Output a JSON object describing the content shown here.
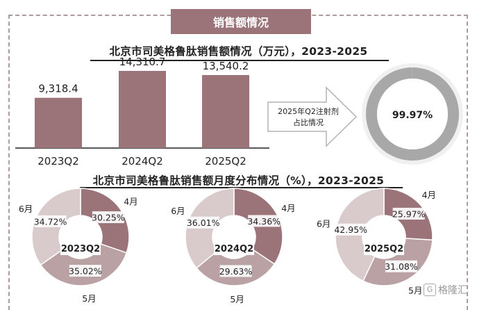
{
  "header": {
    "badge_label": "销售额情况"
  },
  "chart_data": [
    {
      "type": "bar",
      "title": "北京市司美格鲁肽销售额情况（万元），2023-2025",
      "categories": [
        "2023Q2",
        "2024Q2",
        "2025Q2"
      ],
      "values": [
        9318.4,
        14310.7,
        13540.2
      ],
      "value_labels": [
        "9,318.4",
        "14,310.7",
        "13,540.2"
      ],
      "ylim": [
        0,
        16500
      ],
      "grid": false,
      "bar_color": "#9a7479"
    },
    {
      "type": "pie",
      "variant": "donut",
      "title": "",
      "callout_text": "2025年Q2注射剂占比情况",
      "slices": [
        {
          "label": "",
          "value": 99.97,
          "value_label": "99.97%"
        }
      ],
      "ring_color": "#a8a8a8"
    },
    {
      "type": "pie",
      "variant": "donut-group",
      "title": "北京市司美格鲁肽销售额月度分布情况（%），2023-2025",
      "colors": {
        "4月": "#9a7479",
        "5月": "#b9a1a4",
        "6月": "#d9cbcc"
      },
      "charts": [
        {
          "center_label": "2023Q2",
          "slices": [
            {
              "label": "4月",
              "value": 30.25,
              "value_label": "30.25%"
            },
            {
              "label": "5月",
              "value": 35.02,
              "value_label": "35.02%"
            },
            {
              "label": "6月",
              "value": 34.72,
              "value_label": "34.72%"
            }
          ]
        },
        {
          "center_label": "2024Q2",
          "slices": [
            {
              "label": "4月",
              "value": 34.36,
              "value_label": "34.36%"
            },
            {
              "label": "5月",
              "value": 29.63,
              "value_label": "29.63%"
            },
            {
              "label": "6月",
              "value": 36.01,
              "value_label": "36.01%"
            }
          ]
        },
        {
          "center_label": "2025Q2",
          "slices": [
            {
              "label": "4月",
              "value": 25.97,
              "value_label": "25.97%"
            },
            {
              "label": "5月",
              "value": 31.08,
              "value_label": "31.08%"
            },
            {
              "label": "6月",
              "value": 42.95,
              "value_label": "42.95%"
            }
          ]
        }
      ]
    }
  ],
  "watermark": {
    "logo_glyph": "G",
    "text": "格隆汇"
  }
}
